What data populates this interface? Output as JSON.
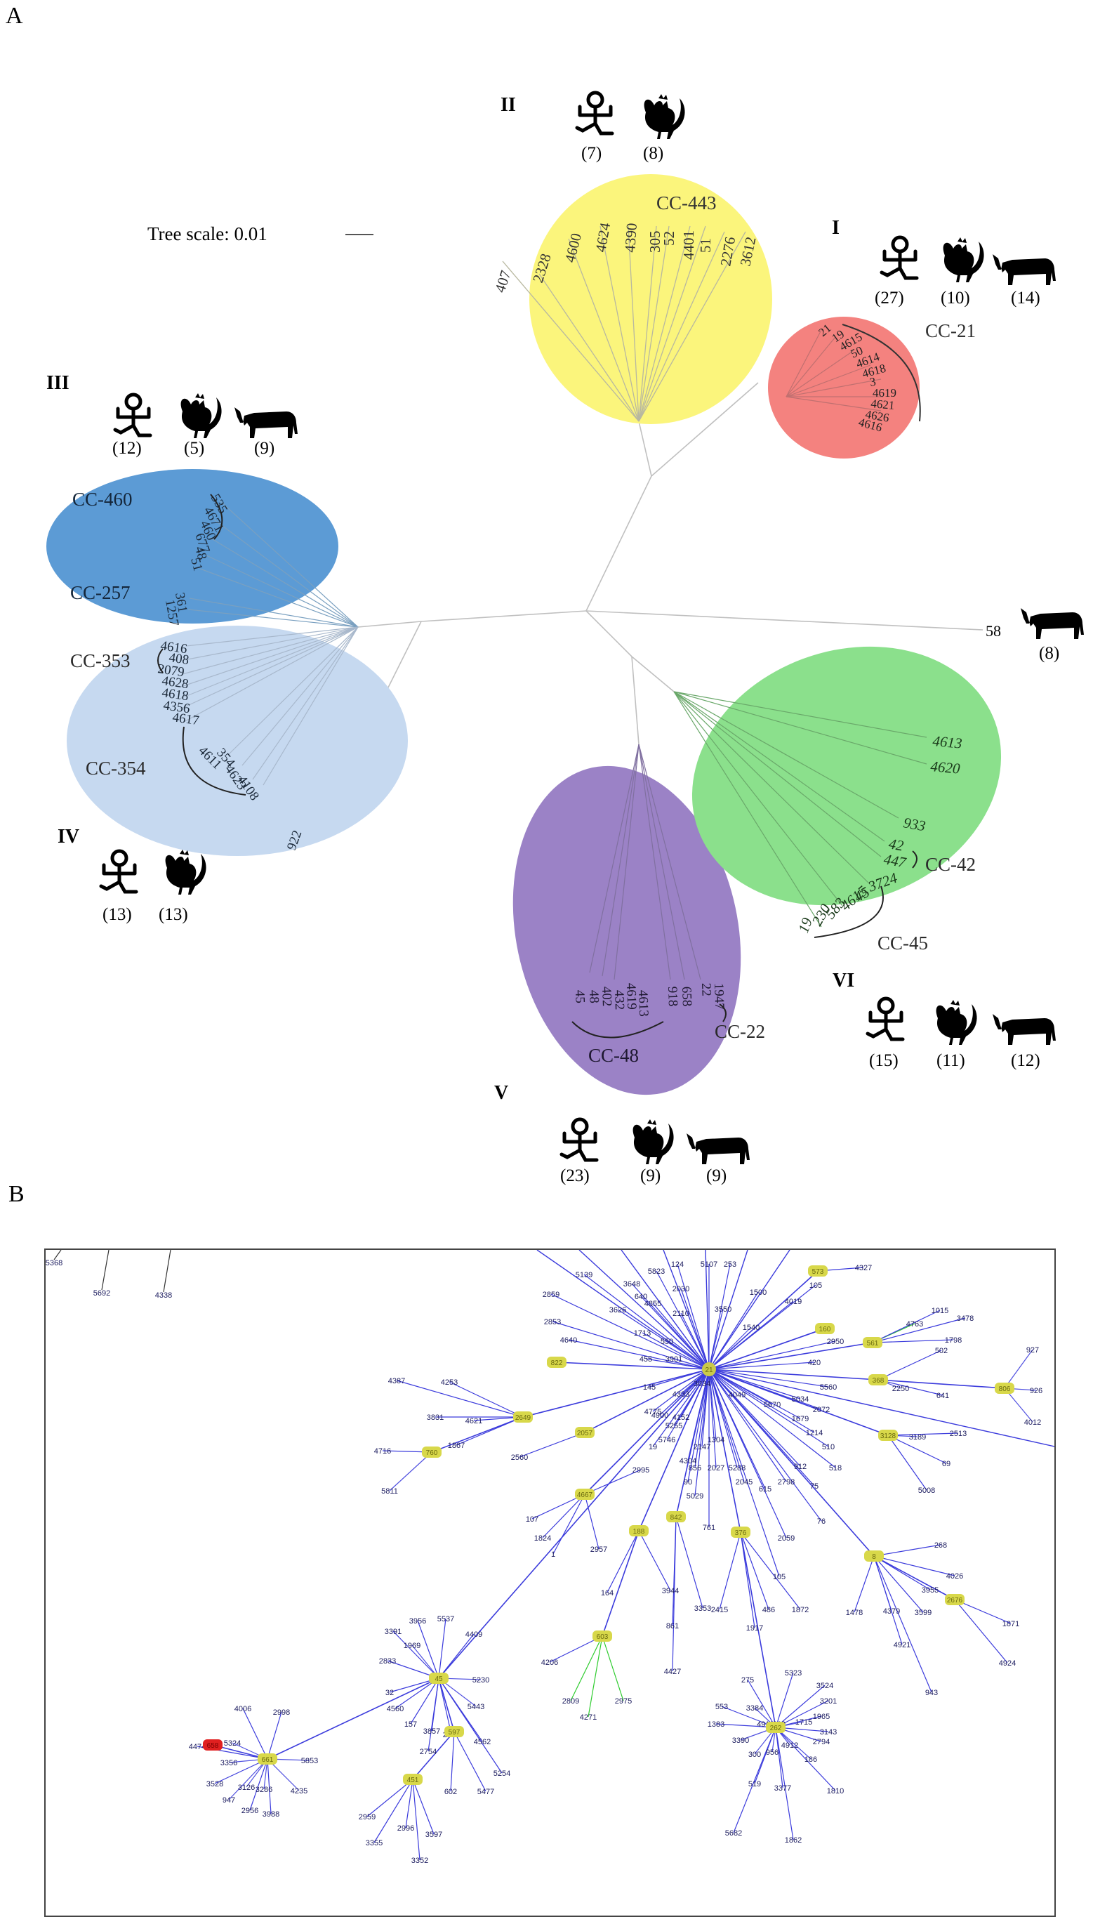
{
  "panel_a": {
    "label": "A",
    "tree_scale_text": "Tree scale: 0.01",
    "groups": [
      {
        "id": "I",
        "label": "I",
        "color": "#f4827f",
        "cc": [
          "CC-21"
        ],
        "counts": {
          "human": "(27)",
          "chicken": "(10)",
          "cattle": "(14)"
        },
        "leaves": [
          "21",
          "19",
          "4615",
          "50",
          "4614",
          "4618",
          "3",
          "4619",
          "4621",
          "4626",
          "4616"
        ]
      },
      {
        "id": "II",
        "label": "II",
        "color": "#fbf57c",
        "cc": [
          "CC-443"
        ],
        "counts": {
          "human": "(7)",
          "chicken": "(8)"
        },
        "leaves": [
          "407",
          "2328",
          "4600",
          "4624",
          "4390",
          "305",
          "52",
          "4401",
          "51",
          "2276",
          "3612"
        ]
      },
      {
        "id": "III",
        "label": "III",
        "color": "#5c9bd5",
        "cc": [
          "CC-460",
          "CC-257"
        ],
        "counts": {
          "human": "(12)",
          "chicken": "(5)",
          "cattle": "(9)"
        },
        "leaves": [
          "535",
          "4671",
          "460",
          "677",
          "51",
          "48",
          "361",
          "1257"
        ]
      },
      {
        "id": "IV",
        "label": "IV",
        "color": "#c6d9f0",
        "cc": [
          "CC-353",
          "CC-354"
        ],
        "counts": {
          "human": "(13)",
          "chicken": "(13)"
        },
        "leaves": [
          "4616",
          "408",
          "2079",
          "4628",
          "4618",
          "4356",
          "4617",
          "4611",
          "354",
          "4623",
          "4108",
          "922"
        ]
      },
      {
        "id": "V",
        "label": "V",
        "color": "#9b82c6",
        "cc": [
          "CC-48",
          "CC-22"
        ],
        "counts": {
          "human": "(23)",
          "chicken": "(9)",
          "cattle": "(9)"
        },
        "leaves": [
          "45",
          "48",
          "402",
          "432",
          "4619",
          "4613",
          "918",
          "658",
          "22",
          "1947"
        ]
      },
      {
        "id": "VI",
        "label": "VI",
        "color": "#8be08c",
        "cc": [
          "CC-42",
          "CC-45"
        ],
        "counts": {
          "human": "(15)",
          "chicken": "(11)",
          "cattle": "(12)"
        },
        "leaves": [
          "4613",
          "4620",
          "933",
          "42",
          "447",
          "3724",
          "45",
          "4615",
          "583",
          "230",
          "19"
        ]
      }
    ],
    "outlier": {
      "leaf": "58",
      "count": "(8)"
    }
  },
  "panel_b": {
    "label": "B",
    "hubs": [
      {
        "id": "21",
        "color": "#c9c94a"
      },
      {
        "id": "573",
        "color": "#d8d84a"
      },
      {
        "id": "160",
        "color": "#d8d84a"
      },
      {
        "id": "561",
        "color": "#d8d84a"
      },
      {
        "id": "822",
        "color": "#d8d84a"
      },
      {
        "id": "368",
        "color": "#d8d84a"
      },
      {
        "id": "806",
        "color": "#d8d84a"
      },
      {
        "id": "2649",
        "color": "#d8d84a"
      },
      {
        "id": "760",
        "color": "#d8d84a"
      },
      {
        "id": "2057",
        "color": "#d8d84a"
      },
      {
        "id": "3128",
        "color": "#d8d84a"
      },
      {
        "id": "4667",
        "color": "#d8d84a"
      },
      {
        "id": "188",
        "color": "#d8d84a"
      },
      {
        "id": "842",
        "color": "#d8d84a"
      },
      {
        "id": "376",
        "color": "#d8d84a"
      },
      {
        "id": "8",
        "color": "#d8d84a"
      },
      {
        "id": "2676",
        "color": "#d8d84a"
      },
      {
        "id": "603",
        "color": "#d8d84a"
      },
      {
        "id": "45",
        "color": "#d8d84a"
      },
      {
        "id": "597",
        "color": "#d8d84a"
      },
      {
        "id": "451",
        "color": "#d8d84a"
      },
      {
        "id": "262",
        "color": "#d8d84a"
      },
      {
        "id": "661",
        "color": "#d8d84a"
      },
      {
        "id": "658",
        "color": "#e02020"
      }
    ]
  }
}
